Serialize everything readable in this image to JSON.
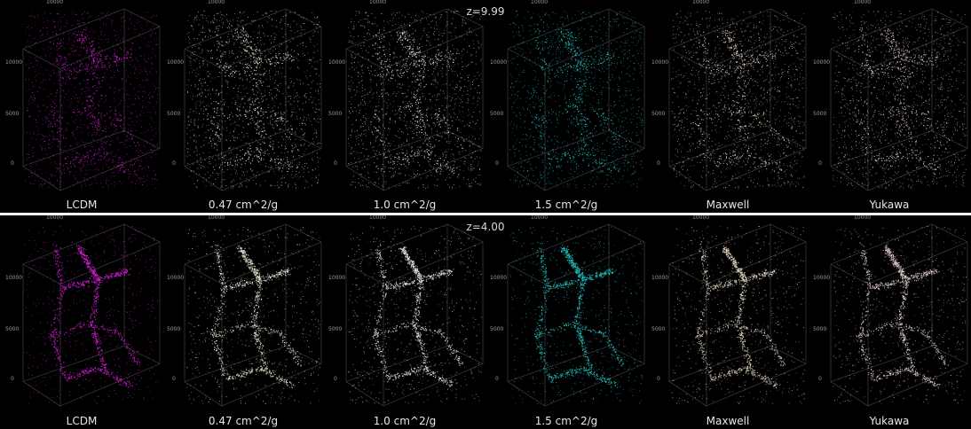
{
  "rows": [
    {
      "title": "z=9.99",
      "panels": [
        {
          "label": "LCDM",
          "color": "#d81fd8"
        },
        {
          "label": "0.47 cm^2/g",
          "color": "#e4ecd4"
        },
        {
          "label": "1.0 cm^2/g",
          "color": "#e9ecec"
        },
        {
          "label": "1.5 cm^2/g",
          "color": "#22d0d0"
        },
        {
          "label": "Maxwell",
          "color": "#ecdcc8"
        },
        {
          "label": "Yukawa",
          "color": "#ecd6d2"
        }
      ]
    },
    {
      "title": "z=4.00",
      "panels": [
        {
          "label": "LCDM",
          "color": "#d81fd8"
        },
        {
          "label": "0.47 cm^2/g",
          "color": "#e4ecd4"
        },
        {
          "label": "1.0 cm^2/g",
          "color": "#e9ecec"
        },
        {
          "label": "1.5 cm^2/g",
          "color": "#22d0d0"
        },
        {
          "label": "Maxwell",
          "color": "#ecdcc8"
        },
        {
          "label": "Yukawa",
          "color": "#ecd6d2"
        }
      ]
    }
  ],
  "axis_ticks": {
    "t10000": "10000",
    "t5000": "5000",
    "t0": "0"
  }
}
